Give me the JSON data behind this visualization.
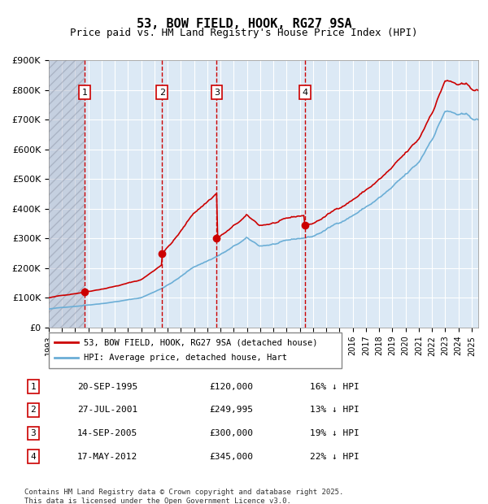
{
  "title": "53, BOW FIELD, HOOK, RG27 9SA",
  "subtitle": "Price paid vs. HM Land Registry's House Price Index (HPI)",
  "legend_line1": "53, BOW FIELD, HOOK, RG27 9SA (detached house)",
  "legend_line2": "HPI: Average price, detached house, Hart",
  "table_rows": [
    {
      "num": 1,
      "date": "20-SEP-1995",
      "price": "£120,000",
      "pct": "16% ↓ HPI"
    },
    {
      "num": 2,
      "date": "27-JUL-2001",
      "price": "£249,995",
      "pct": "13% ↓ HPI"
    },
    {
      "num": 3,
      "date": "14-SEP-2005",
      "price": "£300,000",
      "pct": "19% ↓ HPI"
    },
    {
      "num": 4,
      "date": "17-MAY-2012",
      "price": "£345,000",
      "pct": "22% ↓ HPI"
    }
  ],
  "footer": "Contains HM Land Registry data © Crown copyright and database right 2025.\nThis data is licensed under the Open Government Licence v3.0.",
  "sale_dates_decimal": [
    1995.72,
    2001.57,
    2005.71,
    2012.38
  ],
  "sale_prices": [
    120000,
    249995,
    300000,
    345000
  ],
  "vline_dates_decimal": [
    1995.72,
    2001.57,
    2005.71,
    2012.38
  ],
  "hpi_color": "#6baed6",
  "price_color": "#cc0000",
  "bg_color": "#dce9f5",
  "plot_bg_color": "#dce9f5",
  "hatch_color": "#c0c8d8",
  "grid_color": "#ffffff",
  "vline_color": "#cc0000",
  "ylim": [
    0,
    900000
  ],
  "xlim_start": 1993.0,
  "xlim_end": 2025.5,
  "yticks": [
    0,
    100000,
    200000,
    300000,
    400000,
    500000,
    600000,
    700000,
    800000,
    900000
  ],
  "xtick_years": [
    1993,
    1994,
    1995,
    1996,
    1997,
    1998,
    1999,
    2000,
    2001,
    2002,
    2003,
    2004,
    2005,
    2006,
    2007,
    2008,
    2009,
    2010,
    2011,
    2012,
    2013,
    2014,
    2015,
    2016,
    2017,
    2018,
    2019,
    2020,
    2021,
    2022,
    2023,
    2024,
    2025
  ]
}
